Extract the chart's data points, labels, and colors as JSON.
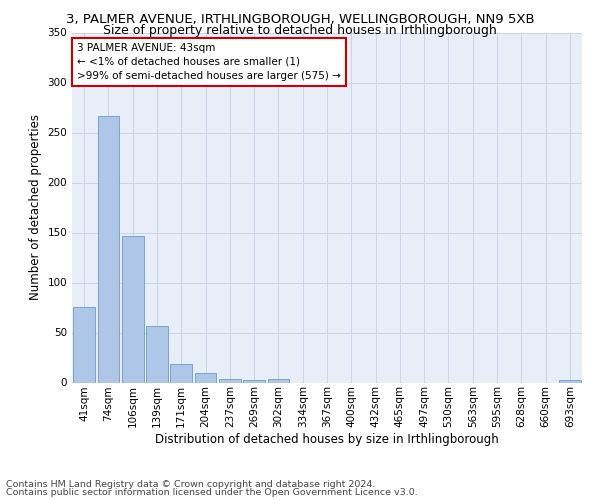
{
  "title": "3, PALMER AVENUE, IRTHLINGBOROUGH, WELLINGBOROUGH, NN9 5XB",
  "subtitle": "Size of property relative to detached houses in Irthlingborough",
  "xlabel": "Distribution of detached houses by size in Irthlingborough",
  "ylabel": "Number of detached properties",
  "categories": [
    "41sqm",
    "74sqm",
    "106sqm",
    "139sqm",
    "171sqm",
    "204sqm",
    "237sqm",
    "269sqm",
    "302sqm",
    "334sqm",
    "367sqm",
    "400sqm",
    "432sqm",
    "465sqm",
    "497sqm",
    "530sqm",
    "563sqm",
    "595sqm",
    "628sqm",
    "660sqm",
    "693sqm"
  ],
  "values": [
    76,
    267,
    147,
    57,
    19,
    10,
    4,
    3,
    4,
    0,
    0,
    0,
    0,
    0,
    0,
    0,
    0,
    0,
    0,
    0,
    3
  ],
  "bar_color": "#aec6e8",
  "bar_edge_color": "#5a8fc0",
  "annotation_text": "3 PALMER AVENUE: 43sqm\n← <1% of detached houses are smaller (1)\n>99% of semi-detached houses are larger (575) →",
  "annotation_box_color": "#ffffff",
  "annotation_box_edge": "#cc0000",
  "ylim": [
    0,
    350
  ],
  "yticks": [
    0,
    50,
    100,
    150,
    200,
    250,
    300,
    350
  ],
  "grid_color": "#c8d4e8",
  "bg_color": "#e8eef8",
  "footer_line1": "Contains HM Land Registry data © Crown copyright and database right 2024.",
  "footer_line2": "Contains public sector information licensed under the Open Government Licence v3.0.",
  "title_fontsize": 9.5,
  "subtitle_fontsize": 9,
  "axis_label_fontsize": 8.5,
  "tick_fontsize": 7.5,
  "annotation_fontsize": 7.5,
  "footer_fontsize": 6.8
}
